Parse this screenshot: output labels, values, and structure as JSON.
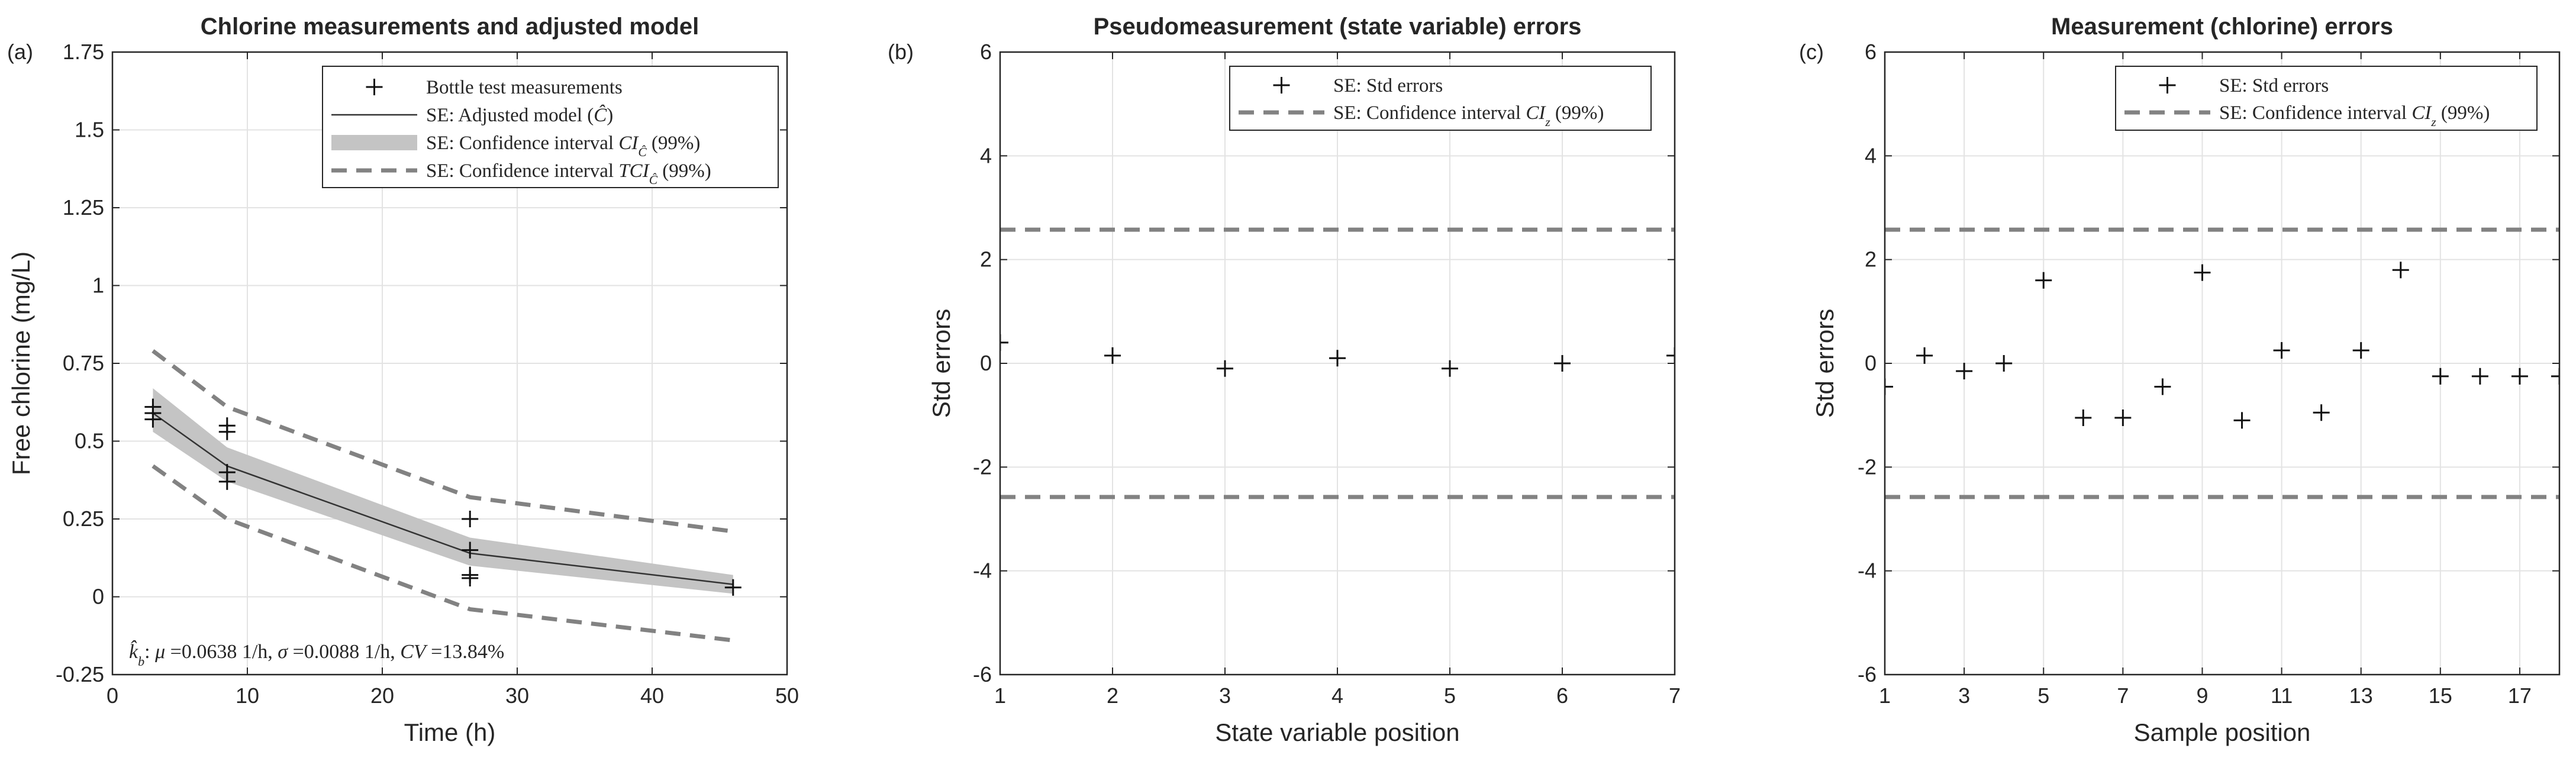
{
  "chart_data": [
    {
      "panel_label": "(a)",
      "type": "line",
      "title": "Chlorine measurements and adjusted model",
      "xlabel": "Time (h)",
      "ylabel": "Free chlorine (mg/L)",
      "xlim": [
        0,
        50
      ],
      "ylim": [
        -0.25,
        1.75
      ],
      "xticks": [
        0,
        10,
        20,
        30,
        40,
        50
      ],
      "yticks": [
        -0.25,
        0,
        0.25,
        0.5,
        0.75,
        1,
        1.25,
        1.5,
        1.75
      ],
      "xtick_labels": [
        "0",
        "10",
        "20",
        "30",
        "40",
        "50"
      ],
      "ytick_labels": [
        "-0.25",
        "0",
        "0.25",
        "0.5",
        "0.75",
        "1",
        "1.25",
        "1.5",
        "1.75"
      ],
      "grid": true,
      "legend_position": "top-right",
      "legend": [
        "Bottle test measurements",
        "SE: Adjusted model (Ĉ)",
        "SE: Confidence interval CI_Ĉ (99%)",
        "SE: Confidence interval TCI_Ĉ (99%)"
      ],
      "annotation": "k̂_b: μ =0.0638 1/h, σ =0.0088 1/h, CV =13.84%",
      "measurements": [
        {
          "x": 3,
          "y": 0.61
        },
        {
          "x": 3,
          "y": 0.59
        },
        {
          "x": 3,
          "y": 0.57
        },
        {
          "x": 8.5,
          "y": 0.55
        },
        {
          "x": 8.5,
          "y": 0.53
        },
        {
          "x": 8.5,
          "y": 0.4
        },
        {
          "x": 8.5,
          "y": 0.37
        },
        {
          "x": 26.5,
          "y": 0.25
        },
        {
          "x": 26.5,
          "y": 0.15
        },
        {
          "x": 26.5,
          "y": 0.07
        },
        {
          "x": 26.5,
          "y": 0.06
        },
        {
          "x": 46,
          "y": 0.03
        }
      ],
      "model": {
        "x": [
          3,
          8.5,
          26.5,
          46
        ],
        "y": [
          0.59,
          0.42,
          0.14,
          0.04
        ]
      },
      "ci_band": {
        "x": [
          3,
          8.5,
          26.5,
          46
        ],
        "lower": [
          0.53,
          0.37,
          0.1,
          0.01
        ],
        "upper": [
          0.67,
          0.48,
          0.19,
          0.07
        ]
      },
      "tci_upper": {
        "x": [
          3,
          8.5,
          26.5,
          46
        ],
        "y": [
          0.79,
          0.61,
          0.32,
          0.21
        ]
      },
      "tci_lower": {
        "x": [
          3,
          8.5,
          26.5,
          46
        ],
        "y": [
          0.42,
          0.25,
          -0.04,
          -0.14
        ]
      }
    },
    {
      "panel_label": "(b)",
      "type": "scatter",
      "title": "Pseudomeasurement (state variable) errors",
      "xlabel": "State variable position",
      "ylabel": "Std errors",
      "xlim": [
        1,
        7
      ],
      "ylim": [
        -6,
        6
      ],
      "xticks": [
        1,
        2,
        3,
        4,
        5,
        6,
        7
      ],
      "yticks": [
        -6,
        -4,
        -2,
        0,
        2,
        4,
        6
      ],
      "xtick_labels": [
        "1",
        "2",
        "3",
        "4",
        "5",
        "6",
        "7"
      ],
      "ytick_labels": [
        "-6",
        "-4",
        "-2",
        "0",
        "2",
        "4",
        "6"
      ],
      "grid": true,
      "legend_position": "top-right",
      "legend": [
        "SE: Std errors",
        "SE: Confidence interval CI_z (99%)"
      ],
      "points": [
        {
          "x": 1,
          "y": 0.4
        },
        {
          "x": 2,
          "y": 0.15
        },
        {
          "x": 3,
          "y": -0.1
        },
        {
          "x": 4,
          "y": 0.1
        },
        {
          "x": 5,
          "y": -0.1
        },
        {
          "x": 6,
          "y": 0.0
        },
        {
          "x": 7,
          "y": 0.15
        }
      ],
      "ci_lines": [
        2.576,
        -2.576
      ]
    },
    {
      "panel_label": "(c)",
      "type": "scatter",
      "title": "Measurement (chlorine) errors",
      "xlabel": "Sample position",
      "ylabel": "Std errors",
      "xlim": [
        1,
        18
      ],
      "ylim": [
        -6,
        6
      ],
      "xticks": [
        1,
        3,
        5,
        7,
        9,
        11,
        13,
        15,
        17
      ],
      "yticks": [
        -6,
        -4,
        -2,
        0,
        2,
        4,
        6
      ],
      "xtick_labels": [
        "1",
        "3",
        "5",
        "7",
        "9",
        "11",
        "13",
        "15",
        "17"
      ],
      "ytick_labels": [
        "-6",
        "-4",
        "-2",
        "0",
        "2",
        "4",
        "6"
      ],
      "grid": true,
      "legend_position": "top-right",
      "legend": [
        "SE: Std errors",
        "SE: Confidence interval CI_z (99%)"
      ],
      "points": [
        {
          "x": 1,
          "y": -0.45
        },
        {
          "x": 2,
          "y": 0.15
        },
        {
          "x": 3,
          "y": -0.15
        },
        {
          "x": 4,
          "y": 0.0
        },
        {
          "x": 5,
          "y": 1.6
        },
        {
          "x": 6,
          "y": -1.05
        },
        {
          "x": 7,
          "y": -1.05
        },
        {
          "x": 8,
          "y": -0.45
        },
        {
          "x": 9,
          "y": 1.75
        },
        {
          "x": 10,
          "y": -1.1
        },
        {
          "x": 11,
          "y": 0.25
        },
        {
          "x": 12,
          "y": -0.95
        },
        {
          "x": 13,
          "y": 0.25
        },
        {
          "x": 14,
          "y": 1.8
        },
        {
          "x": 15,
          "y": -0.25
        },
        {
          "x": 16,
          "y": -0.25
        },
        {
          "x": 17,
          "y": -0.25
        },
        {
          "x": 18,
          "y": -0.25
        }
      ],
      "ci_lines": [
        2.576,
        -2.576
      ]
    }
  ]
}
